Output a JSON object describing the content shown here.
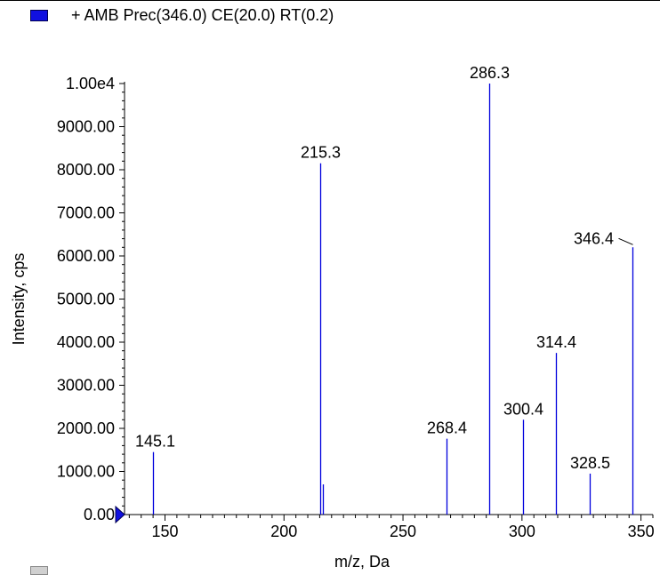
{
  "legend": {
    "label": "+ AMB Prec(346.0) CE(20.0) RT(0.2)",
    "color": "#1010e0"
  },
  "colors": {
    "peak": "#0000dd",
    "axis": "#000000"
  },
  "chart_data": {
    "type": "bar",
    "subtype": "mass-spectrum-stick",
    "xlabel": "m/z, Da",
    "ylabel": "Intensity, cps",
    "xlim": [
      133,
      355
    ],
    "ylim": [
      0,
      10000
    ],
    "x_ticks": [
      {
        "value": 150,
        "label": "150"
      },
      {
        "value": 200,
        "label": "200"
      },
      {
        "value": 250,
        "label": "250"
      },
      {
        "value": 300,
        "label": "300"
      },
      {
        "value": 350,
        "label": "350"
      }
    ],
    "y_ticks": [
      {
        "value": 0,
        "label": "0.00"
      },
      {
        "value": 1000,
        "label": "1000.00"
      },
      {
        "value": 2000,
        "label": "2000.00"
      },
      {
        "value": 3000,
        "label": "3000.00"
      },
      {
        "value": 4000,
        "label": "4000.00"
      },
      {
        "value": 5000,
        "label": "5000.00"
      },
      {
        "value": 6000,
        "label": "6000.00"
      },
      {
        "value": 7000,
        "label": "7000.00"
      },
      {
        "value": 8000,
        "label": "8000.00"
      },
      {
        "value": 9000,
        "label": "9000.00"
      },
      {
        "value": 10000,
        "label": "1.00e4"
      }
    ],
    "peaks": [
      {
        "mz": 145.1,
        "intensity": 1450,
        "label": "145.1"
      },
      {
        "mz": 215.3,
        "intensity": 8150,
        "label": "215.3"
      },
      {
        "mz": 216.3,
        "intensity": 700,
        "label": ""
      },
      {
        "mz": 268.4,
        "intensity": 1760,
        "label": "268.4"
      },
      {
        "mz": 286.3,
        "intensity": 10000,
        "label": "286.3"
      },
      {
        "mz": 300.4,
        "intensity": 2200,
        "label": "300.4"
      },
      {
        "mz": 314.4,
        "intensity": 3750,
        "label": "314.4"
      },
      {
        "mz": 328.5,
        "intensity": 950,
        "label": "328.5"
      },
      {
        "mz": 346.4,
        "intensity": 6200,
        "label": "346.4"
      }
    ]
  }
}
